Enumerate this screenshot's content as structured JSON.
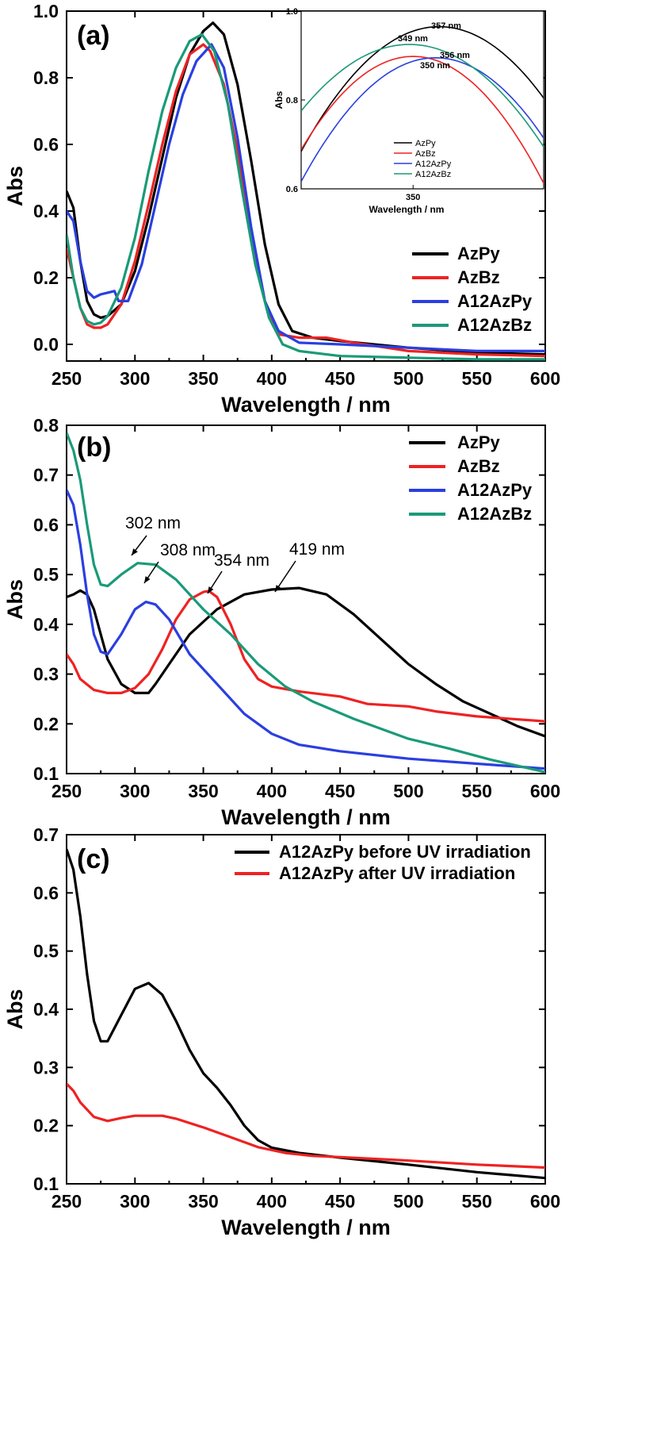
{
  "colors": {
    "AzPy": "#000000",
    "AzBz": "#ee2222",
    "A12AzPy": "#2a3fe0",
    "A12AzBz": "#1a9a78"
  },
  "chart_data": [
    {
      "panel": "(a)",
      "type": "line",
      "xlabel": "Wavelength / nm",
      "ylabel": "Abs",
      "xlim": [
        250,
        600
      ],
      "ylim": [
        -0.05,
        1.0
      ],
      "xticks": [
        "250",
        "300",
        "350",
        "400",
        "450",
        "500",
        "550",
        "600"
      ],
      "yticks": [
        "0.0",
        "0.2",
        "0.4",
        "0.6",
        "0.8",
        "1.0"
      ],
      "legend_position": "lower-right",
      "series": [
        {
          "name": "AzPy",
          "color": "#000000",
          "points": [
            [
              250,
              0.46
            ],
            [
              255,
              0.41
            ],
            [
              260,
              0.25
            ],
            [
              265,
              0.13
            ],
            [
              270,
              0.09
            ],
            [
              275,
              0.08
            ],
            [
              280,
              0.085
            ],
            [
              290,
              0.12
            ],
            [
              300,
              0.22
            ],
            [
              310,
              0.38
            ],
            [
              320,
              0.56
            ],
            [
              330,
              0.74
            ],
            [
              340,
              0.87
            ],
            [
              350,
              0.94
            ],
            [
              357,
              0.965
            ],
            [
              365,
              0.93
            ],
            [
              375,
              0.78
            ],
            [
              385,
              0.55
            ],
            [
              395,
              0.3
            ],
            [
              405,
              0.12
            ],
            [
              415,
              0.04
            ],
            [
              430,
              0.02
            ],
            [
              450,
              0.01
            ],
            [
              500,
              -0.01
            ],
            [
              550,
              -0.025
            ],
            [
              600,
              -0.03
            ]
          ]
        },
        {
          "name": "AzBz",
          "color": "#ee2222",
          "points": [
            [
              250,
              0.29
            ],
            [
              255,
              0.2
            ],
            [
              260,
              0.11
            ],
            [
              265,
              0.06
            ],
            [
              270,
              0.05
            ],
            [
              275,
              0.05
            ],
            [
              280,
              0.06
            ],
            [
              290,
              0.12
            ],
            [
              300,
              0.25
            ],
            [
              310,
              0.42
            ],
            [
              320,
              0.6
            ],
            [
              330,
              0.76
            ],
            [
              340,
              0.87
            ],
            [
              350,
              0.9
            ],
            [
              355,
              0.88
            ],
            [
              365,
              0.78
            ],
            [
              375,
              0.58
            ],
            [
              385,
              0.34
            ],
            [
              395,
              0.13
            ],
            [
              405,
              0.03
            ],
            [
              420,
              0.02
            ],
            [
              440,
              0.02
            ],
            [
              460,
              0.005
            ],
            [
              500,
              -0.02
            ],
            [
              550,
              -0.03
            ],
            [
              600,
              -0.035
            ]
          ]
        },
        {
          "name": "A12AzPy",
          "color": "#2a3fe0",
          "points": [
            [
              250,
              0.4
            ],
            [
              255,
              0.37
            ],
            [
              260,
              0.25
            ],
            [
              265,
              0.16
            ],
            [
              270,
              0.14
            ],
            [
              275,
              0.15
            ],
            [
              280,
              0.155
            ],
            [
              285,
              0.16
            ],
            [
              288,
              0.13
            ],
            [
              295,
              0.13
            ],
            [
              305,
              0.24
            ],
            [
              315,
              0.42
            ],
            [
              325,
              0.6
            ],
            [
              335,
              0.75
            ],
            [
              345,
              0.85
            ],
            [
              356,
              0.9
            ],
            [
              365,
              0.83
            ],
            [
              375,
              0.62
            ],
            [
              385,
              0.35
            ],
            [
              395,
              0.13
            ],
            [
              405,
              0.04
            ],
            [
              420,
              0.005
            ],
            [
              450,
              0.0
            ],
            [
              500,
              -0.01
            ],
            [
              550,
              -0.02
            ],
            [
              600,
              -0.02
            ]
          ]
        },
        {
          "name": "A12AzBz",
          "color": "#1a9a78",
          "points": [
            [
              250,
              0.33
            ],
            [
              255,
              0.2
            ],
            [
              260,
              0.11
            ],
            [
              265,
              0.07
            ],
            [
              270,
              0.06
            ],
            [
              275,
              0.065
            ],
            [
              280,
              0.085
            ],
            [
              290,
              0.17
            ],
            [
              300,
              0.32
            ],
            [
              310,
              0.52
            ],
            [
              320,
              0.7
            ],
            [
              330,
              0.83
            ],
            [
              340,
              0.91
            ],
            [
              349,
              0.93
            ],
            [
              358,
              0.88
            ],
            [
              368,
              0.72
            ],
            [
              378,
              0.47
            ],
            [
              388,
              0.24
            ],
            [
              398,
              0.08
            ],
            [
              408,
              0.0
            ],
            [
              420,
              -0.02
            ],
            [
              450,
              -0.035
            ],
            [
              500,
              -0.04
            ],
            [
              550,
              -0.045
            ],
            [
              600,
              -0.045
            ]
          ]
        }
      ],
      "inset": {
        "xlabel": "Wavelength / nm",
        "ylabel": "Abs",
        "xlim": [
          320,
          385
        ],
        "ylim": [
          0.6,
          1.0
        ],
        "xticks": [
          "350"
        ],
        "yticks": [
          "0.6",
          "0.8",
          "1.0"
        ],
        "annotations": [
          "357 nm",
          "349 nm",
          "350 nm",
          "356 nm"
        ],
        "legend": [
          "AzPy",
          "AzBz",
          "A12AzPy",
          "A12AzBz"
        ]
      }
    },
    {
      "panel": "(b)",
      "type": "line",
      "xlabel": "Wavelength / nm",
      "ylabel": "Abs",
      "xlim": [
        250,
        600
      ],
      "ylim": [
        0.1,
        0.8
      ],
      "xticks": [
        "250",
        "300",
        "350",
        "400",
        "450",
        "500",
        "550",
        "600"
      ],
      "yticks": [
        "0.1",
        "0.2",
        "0.3",
        "0.4",
        "0.5",
        "0.6",
        "0.7",
        "0.8"
      ],
      "legend_position": "top-right",
      "annotations": [
        "302 nm",
        "308 nm",
        "354 nm",
        "419 nm"
      ],
      "series": [
        {
          "name": "AzPy",
          "color": "#000000",
          "points": [
            [
              250,
              0.455
            ],
            [
              255,
              0.46
            ],
            [
              260,
              0.468
            ],
            [
              265,
              0.46
            ],
            [
              270,
              0.43
            ],
            [
              275,
              0.38
            ],
            [
              280,
              0.33
            ],
            [
              290,
              0.28
            ],
            [
              300,
              0.262
            ],
            [
              310,
              0.262
            ],
            [
              315,
              0.28
            ],
            [
              325,
              0.32
            ],
            [
              340,
              0.38
            ],
            [
              360,
              0.43
            ],
            [
              380,
              0.46
            ],
            [
              400,
              0.47
            ],
            [
              420,
              0.473
            ],
            [
              440,
              0.46
            ],
            [
              460,
              0.42
            ],
            [
              480,
              0.37
            ],
            [
              500,
              0.32
            ],
            [
              520,
              0.28
            ],
            [
              540,
              0.245
            ],
            [
              560,
              0.22
            ],
            [
              580,
              0.195
            ],
            [
              600,
              0.175
            ]
          ]
        },
        {
          "name": "AzBz",
          "color": "#ee2222",
          "points": [
            [
              250,
              0.34
            ],
            [
              255,
              0.32
            ],
            [
              260,
              0.29
            ],
            [
              270,
              0.268
            ],
            [
              280,
              0.262
            ],
            [
              290,
              0.262
            ],
            [
              300,
              0.272
            ],
            [
              310,
              0.3
            ],
            [
              320,
              0.35
            ],
            [
              330,
              0.41
            ],
            [
              340,
              0.45
            ],
            [
              350,
              0.465
            ],
            [
              354,
              0.467
            ],
            [
              360,
              0.455
            ],
            [
              370,
              0.4
            ],
            [
              380,
              0.33
            ],
            [
              390,
              0.29
            ],
            [
              400,
              0.275
            ],
            [
              420,
              0.265
            ],
            [
              450,
              0.255
            ],
            [
              470,
              0.24
            ],
            [
              500,
              0.235
            ],
            [
              520,
              0.225
            ],
            [
              550,
              0.215
            ],
            [
              600,
              0.205
            ]
          ]
        },
        {
          "name": "A12AzPy",
          "color": "#2a3fe0",
          "points": [
            [
              250,
              0.67
            ],
            [
              255,
              0.64
            ],
            [
              260,
              0.56
            ],
            [
              265,
              0.46
            ],
            [
              270,
              0.38
            ],
            [
              275,
              0.345
            ],
            [
              280,
              0.34
            ],
            [
              290,
              0.38
            ],
            [
              300,
              0.43
            ],
            [
              308,
              0.445
            ],
            [
              315,
              0.44
            ],
            [
              325,
              0.41
            ],
            [
              340,
              0.34
            ],
            [
              360,
              0.28
            ],
            [
              380,
              0.22
            ],
            [
              400,
              0.18
            ],
            [
              420,
              0.158
            ],
            [
              450,
              0.145
            ],
            [
              500,
              0.13
            ],
            [
              550,
              0.12
            ],
            [
              600,
              0.11
            ]
          ]
        },
        {
          "name": "A12AzBz",
          "color": "#1a9a78",
          "points": [
            [
              250,
              0.785
            ],
            [
              255,
              0.75
            ],
            [
              260,
              0.69
            ],
            [
              265,
              0.6
            ],
            [
              270,
              0.52
            ],
            [
              275,
              0.48
            ],
            [
              280,
              0.477
            ],
            [
              290,
              0.5
            ],
            [
              302,
              0.523
            ],
            [
              315,
              0.52
            ],
            [
              330,
              0.49
            ],
            [
              350,
              0.43
            ],
            [
              370,
              0.38
            ],
            [
              390,
              0.32
            ],
            [
              410,
              0.275
            ],
            [
              430,
              0.245
            ],
            [
              460,
              0.21
            ],
            [
              500,
              0.17
            ],
            [
              530,
              0.15
            ],
            [
              560,
              0.128
            ],
            [
              600,
              0.103
            ]
          ]
        }
      ]
    },
    {
      "panel": "(c)",
      "type": "line",
      "xlabel": "Wavelength / nm",
      "ylabel": "Abs",
      "xlim": [
        250,
        600
      ],
      "ylim": [
        0.1,
        0.7
      ],
      "xticks": [
        "250",
        "300",
        "350",
        "400",
        "450",
        "500",
        "550",
        "600"
      ],
      "yticks": [
        "0.1",
        "0.2",
        "0.3",
        "0.4",
        "0.5",
        "0.6",
        "0.7"
      ],
      "legend_position": "top-right",
      "series": [
        {
          "name": "A12AzPy  before UV irradiation",
          "color": "#000000",
          "points": [
            [
              250,
              0.675
            ],
            [
              255,
              0.64
            ],
            [
              260,
              0.56
            ],
            [
              265,
              0.46
            ],
            [
              270,
              0.38
            ],
            [
              275,
              0.345
            ],
            [
              280,
              0.345
            ],
            [
              290,
              0.39
            ],
            [
              300,
              0.435
            ],
            [
              310,
              0.445
            ],
            [
              320,
              0.425
            ],
            [
              330,
              0.38
            ],
            [
              340,
              0.33
            ],
            [
              350,
              0.29
            ],
            [
              360,
              0.265
            ],
            [
              370,
              0.235
            ],
            [
              380,
              0.2
            ],
            [
              390,
              0.175
            ],
            [
              400,
              0.162
            ],
            [
              420,
              0.153
            ],
            [
              450,
              0.145
            ],
            [
              500,
              0.133
            ],
            [
              550,
              0.12
            ],
            [
              600,
              0.11
            ]
          ]
        },
        {
          "name": "A12AzPy  after UV irradiation",
          "color": "#ee2222",
          "points": [
            [
              250,
              0.272
            ],
            [
              255,
              0.26
            ],
            [
              260,
              0.24
            ],
            [
              270,
              0.215
            ],
            [
              280,
              0.208
            ],
            [
              290,
              0.213
            ],
            [
              300,
              0.217
            ],
            [
              320,
              0.217
            ],
            [
              330,
              0.212
            ],
            [
              350,
              0.197
            ],
            [
              370,
              0.18
            ],
            [
              390,
              0.163
            ],
            [
              410,
              0.153
            ],
            [
              430,
              0.148
            ],
            [
              450,
              0.146
            ],
            [
              500,
              0.14
            ],
            [
              550,
              0.133
            ],
            [
              600,
              0.128
            ]
          ]
        }
      ]
    }
  ]
}
